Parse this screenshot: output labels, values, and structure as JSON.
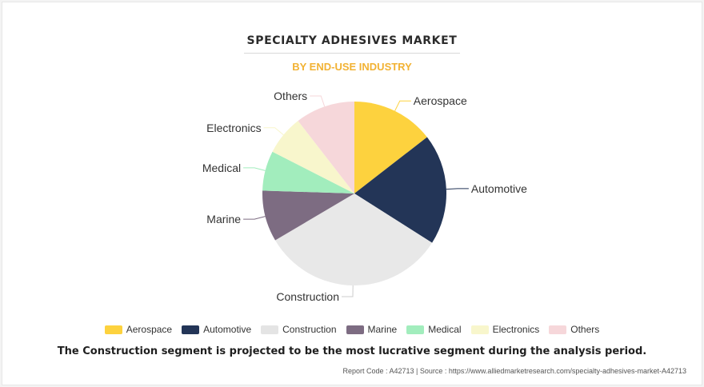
{
  "chart_data": {
    "type": "pie",
    "title": "SPECIALTY ADHESIVES MARKET",
    "subtitle": "BY END-USE INDUSTRY",
    "slices": [
      {
        "label": "Aerospace",
        "value": 14.5,
        "color": "#fdd23e"
      },
      {
        "label": "Automotive",
        "value": 19.5,
        "color": "#233557"
      },
      {
        "label": "Construction",
        "value": 32.5,
        "color": "#e8e8e8"
      },
      {
        "label": "Marine",
        "value": 9.0,
        "color": "#7d6c82"
      },
      {
        "label": "Medical",
        "value": 7.0,
        "color": "#a2edbd"
      },
      {
        "label": "Electronics",
        "value": 7.0,
        "color": "#f8f6cc"
      },
      {
        "label": "Others",
        "value": 10.5,
        "color": "#f6d7da"
      }
    ],
    "legend_position": "bottom"
  },
  "footnote": "The Construction segment is projected to be the most lucrative segment during the analysis period.",
  "source": "Report Code : A42713  |  Source : https://www.alliedmarketresearch.com/specialty-adhesives-market-A42713"
}
